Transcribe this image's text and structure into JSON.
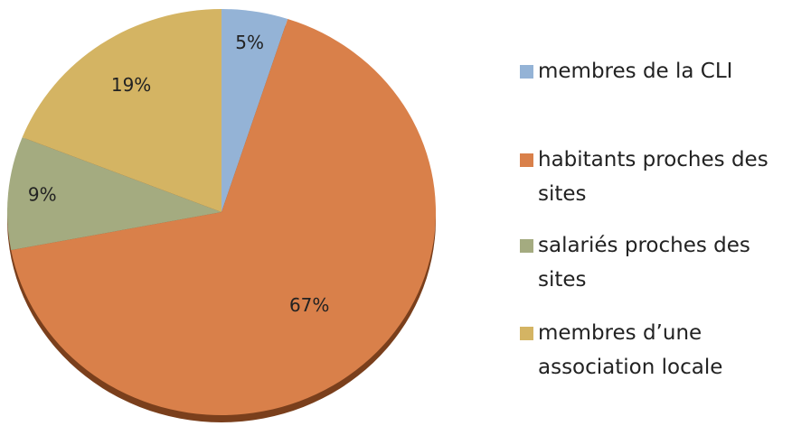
{
  "chart_data": {
    "type": "pie",
    "categories": [
      "membres de la CLI",
      "habitants proches des sites",
      "salariés proches des sites",
      "membres d’une association locale"
    ],
    "values": [
      5,
      67,
      9,
      19
    ],
    "value_labels": [
      "5%",
      "67%",
      "9%",
      "19%"
    ],
    "colors": [
      "#94b3d6",
      "#d9804a",
      "#a4ab80",
      "#d4b463"
    ],
    "legend": "right"
  }
}
